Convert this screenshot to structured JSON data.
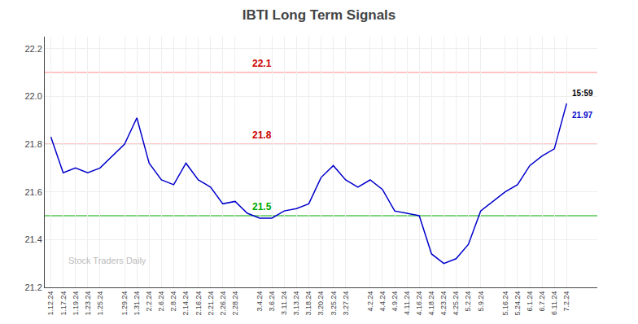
{
  "chart_data": {
    "type": "line",
    "title": "IBTI Long Term Signals",
    "categories": [
      "1.12.24",
      "1.17.24",
      "1.19.24",
      "1.23.24",
      "1.25.24",
      null,
      "1.29.24",
      "1.31.24",
      "2.2.24",
      "2.6.24",
      "2.8.24",
      "2.14.24",
      "2.16.24",
      "2.21.24",
      "2.26.24",
      "2.28.24",
      null,
      "3.4.24",
      "3.6.24",
      "3.11.24",
      "3.13.24",
      "3.18.24",
      "3.20.24",
      "3.25.24",
      "3.27.24",
      null,
      "4.2.24",
      "4.4.24",
      "4.9.24",
      "4.11.24",
      "4.16.24",
      "4.18.24",
      "4.23.24",
      "4.25.24",
      "5.2.24",
      "5.9.24",
      null,
      "5.16.24",
      "5.24.24",
      "6.1.24",
      "6.7.24",
      "6.11.24",
      "7.2.24"
    ],
    "values": [
      21.83,
      21.68,
      21.7,
      21.68,
      21.7,
      21.75,
      21.8,
      21.91,
      21.72,
      21.65,
      21.63,
      21.72,
      21.65,
      21.62,
      21.55,
      21.56,
      21.51,
      21.49,
      21.49,
      21.52,
      21.53,
      21.55,
      21.66,
      21.71,
      21.65,
      21.62,
      21.65,
      21.61,
      21.52,
      21.51,
      21.5,
      21.34,
      21.3,
      21.32,
      21.38,
      21.52,
      21.56,
      21.6,
      21.63,
      21.71,
      21.75,
      21.78,
      21.97
    ],
    "color": "#0000cc",
    "ylim": [
      21.2,
      22.25
    ],
    "yticks": [
      21.2,
      21.4,
      21.6,
      21.8,
      {
        "value": 22.0,
        "label": "22.0"
      },
      22.2
    ],
    "grid": true,
    "hlines": [
      {
        "value": 22.1,
        "label": "22.1",
        "color": "#ff8888",
        "label_color": "#cc0000"
      },
      {
        "value": 21.8,
        "label": "21.8",
        "color": "#ff8888",
        "label_color": "#cc0000"
      },
      {
        "value": 21.5,
        "label": "21.5",
        "color": "#00aa00",
        "label_color": "#00aa00"
      }
    ],
    "annotations": [
      {
        "text": "15:59",
        "color": "#000000"
      },
      {
        "text": "21.97",
        "color": "#0000cc"
      }
    ],
    "watermark": "Stock Traders Daily"
  }
}
